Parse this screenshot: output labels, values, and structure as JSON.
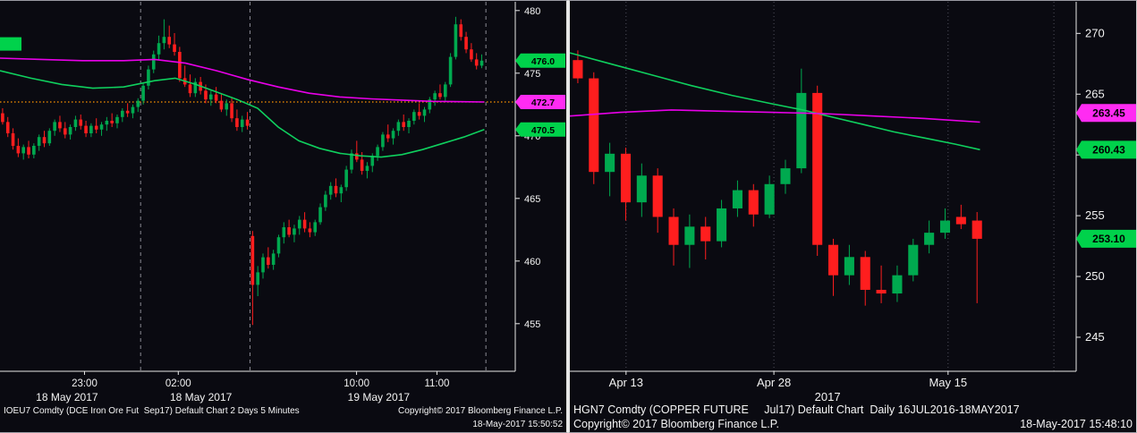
{
  "chart_data": [
    {
      "id": "iron-ore-5min",
      "type": "candlestick",
      "symbol": "IOEU7 Comdty",
      "title": "IOEU7 Comdty (DCE Iron Ore Fut  Sep17) Default Chart 2 Days 5 Minutes",
      "copyright": "Copyright© 2017 Bloomberg Finance L.P.",
      "timestamp": "18-May-2017 15:50:52",
      "ylim": [
        451.2,
        480.7
      ],
      "yticks": [
        455,
        460,
        465,
        470,
        475,
        480
      ],
      "x_span": 0.94,
      "x_time_labels": [
        {
          "label": "23:00",
          "f": 0.164
        },
        {
          "label": "02:00",
          "f": 0.346
        },
        {
          "label": "10:00",
          "f": 0.692
        },
        {
          "label": "11:00",
          "f": 0.848
        }
      ],
      "x_date_labels": [
        {
          "label": "18 May 2017",
          "f": 0.13
        },
        {
          "label": "18 May 2017",
          "f": 0.39
        },
        {
          "label": "19 May 2017",
          "f": 0.735
        }
      ],
      "dividers": [
        {
          "i": 27
        },
        {
          "i": 48
        },
        {
          "f": 0.943
        }
      ],
      "divider_color": "#8b8b94",
      "divider_dash": "4,4",
      "last_price_line": {
        "value": 472.7,
        "color": "#ff9400"
      },
      "badges": [
        {
          "label": "476.0",
          "value": 476.0,
          "color": "#00d24b"
        },
        {
          "label": "472.7",
          "value": 472.7,
          "color": "#ff2bf2"
        },
        {
          "label": "470.5",
          "value": 470.5,
          "color": "#00d24b"
        }
      ],
      "edge_fragment": {
        "value": 477.3,
        "color": "#00d24b"
      },
      "up_color": "#00a94f",
      "down_color": "#ff1e1e",
      "ma_lines": [
        {
          "name": "smavg-green-line",
          "color": "#0fd05e",
          "points": [
            [
              0,
              475.2
            ],
            [
              0.06,
              474.6
            ],
            [
              0.12,
              474.1
            ],
            [
              0.18,
              473.8
            ],
            [
              0.24,
              473.9
            ],
            [
              0.3,
              474.4
            ],
            [
              0.34,
              474.6
            ],
            [
              0.38,
              474.1
            ],
            [
              0.42,
              473.5
            ],
            [
              0.46,
              472.9
            ],
            [
              0.5,
              472.2
            ],
            [
              0.54,
              470.7
            ],
            [
              0.58,
              469.6
            ],
            [
              0.62,
              469.0
            ],
            [
              0.66,
              468.6
            ],
            [
              0.7,
              468.4
            ],
            [
              0.74,
              468.3
            ],
            [
              0.78,
              468.5
            ],
            [
              0.82,
              468.9
            ],
            [
              0.86,
              469.4
            ],
            [
              0.9,
              469.9
            ],
            [
              0.94,
              470.5
            ]
          ]
        },
        {
          "name": "smavg-magenta-line",
          "color": "#e800e8",
          "points": [
            [
              0,
              476.2
            ],
            [
              0.08,
              476.1
            ],
            [
              0.16,
              476.0
            ],
            [
              0.24,
              476.0
            ],
            [
              0.3,
              476.1
            ],
            [
              0.36,
              475.8
            ],
            [
              0.42,
              475.2
            ],
            [
              0.48,
              474.5
            ],
            [
              0.54,
              473.9
            ],
            [
              0.6,
              473.4
            ],
            [
              0.66,
              473.1
            ],
            [
              0.72,
              472.95
            ],
            [
              0.78,
              472.85
            ],
            [
              0.84,
              472.75
            ],
            [
              0.94,
              472.7
            ]
          ]
        }
      ],
      "candles": [
        [
          471.8,
          472.2,
          470.9,
          471.1
        ],
        [
          471.1,
          471.5,
          469.9,
          470.2
        ],
        [
          470.2,
          470.6,
          468.9,
          469.2
        ],
        [
          469.2,
          469.8,
          468.3,
          468.6
        ],
        [
          468.6,
          469.3,
          468.1,
          469.1
        ],
        [
          469.1,
          469.6,
          468.2,
          468.5
        ],
        [
          468.5,
          469.4,
          468.2,
          469.2
        ],
        [
          469.2,
          470.1,
          468.8,
          469.9
        ],
        [
          469.9,
          470.4,
          469.1,
          469.4
        ],
        [
          469.4,
          470.6,
          469.2,
          470.4
        ],
        [
          470.4,
          471.3,
          470.0,
          471.1
        ],
        [
          471.1,
          471.6,
          470.3,
          470.6
        ],
        [
          470.6,
          471.1,
          469.8,
          470.1
        ],
        [
          470.1,
          470.9,
          469.7,
          470.7
        ],
        [
          470.7,
          471.6,
          470.4,
          471.3
        ],
        [
          471.3,
          471.7,
          470.5,
          470.8
        ],
        [
          470.8,
          471.2,
          469.9,
          470.2
        ],
        [
          470.2,
          471.0,
          469.9,
          470.8
        ],
        [
          470.8,
          471.4,
          470.2,
          470.5
        ],
        [
          470.5,
          471.1,
          470.0,
          470.9
        ],
        [
          470.9,
          471.5,
          470.4,
          471.2
        ],
        [
          471.2,
          471.8,
          470.7,
          471.0
        ],
        [
          471.0,
          471.7,
          470.6,
          471.5
        ],
        [
          471.5,
          472.2,
          471.1,
          472.0
        ],
        [
          472.0,
          472.6,
          471.5,
          471.8
        ],
        [
          471.8,
          472.5,
          471.4,
          472.3
        ],
        [
          472.3,
          473.0,
          471.9,
          472.8
        ],
        [
          472.8,
          474.2,
          472.5,
          474.0
        ],
        [
          474.0,
          475.6,
          473.7,
          475.3
        ],
        [
          475.3,
          476.8,
          475.0,
          476.5
        ],
        [
          476.5,
          478.0,
          476.1,
          477.4
        ],
        [
          477.4,
          479.3,
          476.9,
          477.9
        ],
        [
          477.9,
          478.8,
          477.0,
          477.3
        ],
        [
          477.3,
          478.2,
          476.4,
          476.7
        ],
        [
          476.7,
          477.1,
          474.3,
          474.6
        ],
        [
          474.6,
          475.6,
          473.9,
          474.1
        ],
        [
          474.1,
          474.9,
          473.1,
          473.4
        ],
        [
          473.4,
          474.6,
          473.1,
          474.3
        ],
        [
          474.3,
          474.7,
          473.3,
          473.6
        ],
        [
          473.6,
          474.1,
          472.6,
          472.9
        ],
        [
          472.9,
          473.6,
          472.4,
          473.3
        ],
        [
          473.3,
          473.9,
          472.6,
          472.8
        ],
        [
          472.8,
          473.3,
          471.9,
          472.1
        ],
        [
          472.1,
          472.9,
          471.6,
          472.6
        ],
        [
          472.6,
          473.1,
          471.1,
          471.4
        ],
        [
          471.4,
          472.1,
          470.4,
          470.7
        ],
        [
          470.7,
          471.6,
          470.3,
          471.3
        ],
        [
          471.3,
          471.9,
          470.5,
          470.8
        ],
        [
          462.0,
          462.4,
          454.9,
          458.1
        ],
        [
          458.1,
          459.6,
          457.2,
          459.1
        ],
        [
          459.1,
          460.6,
          458.6,
          460.3
        ],
        [
          460.3,
          461.1,
          459.4,
          459.7
        ],
        [
          459.7,
          460.9,
          459.3,
          460.6
        ],
        [
          460.6,
          462.1,
          460.3,
          461.9
        ],
        [
          461.9,
          463.1,
          461.4,
          462.7
        ],
        [
          462.7,
          463.3,
          461.9,
          462.1
        ],
        [
          462.1,
          462.9,
          461.5,
          462.6
        ],
        [
          462.6,
          463.6,
          462.1,
          463.3
        ],
        [
          463.3,
          463.9,
          462.3,
          462.6
        ],
        [
          462.6,
          463.1,
          461.9,
          462.3
        ],
        [
          462.3,
          463.3,
          462.0,
          463.1
        ],
        [
          463.1,
          464.6,
          462.9,
          464.3
        ],
        [
          464.3,
          465.6,
          464.0,
          465.3
        ],
        [
          465.3,
          466.3,
          464.9,
          466.0
        ],
        [
          466.0,
          466.6,
          465.1,
          465.4
        ],
        [
          465.4,
          466.1,
          464.7,
          465.9
        ],
        [
          465.9,
          467.6,
          465.6,
          467.3
        ],
        [
          467.3,
          468.9,
          467.0,
          468.6
        ],
        [
          468.6,
          469.6,
          467.9,
          468.1
        ],
        [
          468.1,
          468.7,
          466.9,
          467.2
        ],
        [
          467.2,
          467.9,
          466.6,
          467.6
        ],
        [
          467.6,
          468.6,
          467.1,
          468.4
        ],
        [
          468.4,
          469.3,
          468.0,
          469.1
        ],
        [
          469.1,
          470.3,
          468.8,
          470.1
        ],
        [
          470.1,
          470.9,
          469.5,
          469.8
        ],
        [
          469.8,
          470.6,
          469.3,
          470.4
        ],
        [
          470.4,
          471.3,
          470.0,
          471.1
        ],
        [
          471.1,
          471.7,
          470.4,
          470.7
        ],
        [
          470.7,
          471.4,
          470.2,
          471.2
        ],
        [
          471.2,
          472.1,
          470.9,
          471.9
        ],
        [
          471.9,
          472.6,
          471.3,
          471.6
        ],
        [
          471.6,
          472.3,
          471.1,
          472.1
        ],
        [
          472.1,
          473.1,
          471.8,
          472.9
        ],
        [
          472.9,
          473.6,
          472.4,
          473.4
        ],
        [
          473.4,
          474.1,
          472.9,
          473.1
        ],
        [
          473.1,
          474.3,
          472.8,
          474.1
        ],
        [
          474.1,
          476.6,
          473.9,
          476.3
        ],
        [
          476.3,
          479.5,
          476.1,
          478.9
        ],
        [
          478.9,
          479.3,
          477.6,
          477.9
        ],
        [
          477.9,
          478.3,
          476.6,
          476.9
        ],
        [
          476.9,
          477.4,
          475.9,
          476.1
        ],
        [
          476.1,
          476.6,
          475.3,
          475.6
        ],
        [
          475.6,
          476.5,
          475.4,
          476.0
        ]
      ]
    },
    {
      "id": "copper-daily",
      "type": "candlestick",
      "symbol": "HGN7 Comdty",
      "title": "HGN7 Comdty (COPPER FUTURE     Jul17) Default Chart  Daily 16JUL2016-18MAY2017",
      "copyright": "Copyright© 2017 Bloomberg Finance L.P.",
      "timestamp": "18-May-2017 15:48:10",
      "ylim": [
        242.2,
        272.6
      ],
      "yticks": [
        245,
        250,
        255,
        260,
        265,
        270
      ],
      "x_span": 0.82,
      "x_time_labels": [
        {
          "label": "Apr 13",
          "f": 0.111
        },
        {
          "label": "Apr 28",
          "f": 0.403
        },
        {
          "label": "May 15",
          "f": 0.747
        }
      ],
      "x_date_labels": [
        {
          "label": "2017",
          "f": 0.509
        }
      ],
      "dividers": [
        {
          "f": 0.111
        },
        {
          "f": 0.403
        },
        {
          "f": 0.747
        },
        {
          "f": 0.956
        }
      ],
      "divider_color": "#50505c",
      "divider_dash": "1,3",
      "last_price_line": null,
      "badges": [
        {
          "label": "263.45",
          "value": 263.45,
          "color": "#ff2bf2"
        },
        {
          "label": "260.43",
          "value": 260.43,
          "color": "#00d24b"
        },
        {
          "label": "253.10",
          "value": 253.1,
          "color": "#00d24b"
        }
      ],
      "edge_fragment": null,
      "up_color": "#00a94f",
      "down_color": "#ff1e1e",
      "ma_lines": [
        {
          "name": "smavg-green-line",
          "color": "#0fd05e",
          "points": [
            [
              0,
              268.4
            ],
            [
              0.08,
              267.5
            ],
            [
              0.16,
              266.6
            ],
            [
              0.24,
              265.7
            ],
            [
              0.32,
              264.9
            ],
            [
              0.4,
              264.2
            ],
            [
              0.46,
              263.7
            ],
            [
              0.52,
              263.1
            ],
            [
              0.58,
              262.5
            ],
            [
              0.64,
              261.9
            ],
            [
              0.7,
              261.4
            ],
            [
              0.76,
              260.9
            ],
            [
              0.81,
              260.43
            ]
          ]
        },
        {
          "name": "smavg-magenta-line",
          "color": "#e800e8",
          "points": [
            [
              0,
              263.2
            ],
            [
              0.1,
              263.5
            ],
            [
              0.2,
              263.7
            ],
            [
              0.3,
              263.6
            ],
            [
              0.4,
              263.5
            ],
            [
              0.5,
              263.4
            ],
            [
              0.6,
              263.2
            ],
            [
              0.7,
              263.0
            ],
            [
              0.81,
              262.7
            ]
          ]
        }
      ],
      "candles": [
        [
          267.8,
          268.6,
          265.9,
          266.3
        ],
        [
          266.3,
          266.8,
          257.6,
          258.6
        ],
        [
          258.6,
          261.0,
          256.6,
          260.1
        ],
        [
          260.1,
          260.6,
          254.6,
          256.1
        ],
        [
          256.1,
          259.3,
          254.9,
          258.3
        ],
        [
          258.3,
          258.9,
          253.6,
          254.9
        ],
        [
          254.9,
          255.6,
          250.9,
          252.6
        ],
        [
          252.6,
          255.1,
          250.7,
          254.1
        ],
        [
          254.1,
          254.9,
          251.4,
          252.9
        ],
        [
          252.9,
          256.3,
          252.4,
          255.6
        ],
        [
          255.6,
          257.9,
          254.9,
          257.1
        ],
        [
          257.1,
          257.6,
          254.1,
          255.1
        ],
        [
          255.1,
          258.3,
          254.8,
          257.6
        ],
        [
          257.6,
          259.6,
          256.8,
          258.9
        ],
        [
          258.9,
          267.1,
          258.5,
          265.1
        ],
        [
          265.1,
          265.7,
          251.7,
          252.6
        ],
        [
          252.6,
          253.1,
          248.4,
          250.1
        ],
        [
          250.1,
          252.6,
          249.3,
          251.6
        ],
        [
          251.6,
          252.1,
          247.6,
          248.9
        ],
        [
          248.9,
          250.9,
          247.8,
          248.6
        ],
        [
          248.6,
          250.9,
          247.9,
          250.1
        ],
        [
          250.1,
          253.1,
          249.6,
          252.6
        ],
        [
          252.6,
          254.6,
          251.9,
          253.6
        ],
        [
          253.6,
          255.6,
          253.1,
          254.6
        ],
        [
          254.9,
          255.9,
          253.9,
          254.3
        ],
        [
          254.6,
          255.3,
          247.8,
          253.1
        ]
      ]
    }
  ]
}
